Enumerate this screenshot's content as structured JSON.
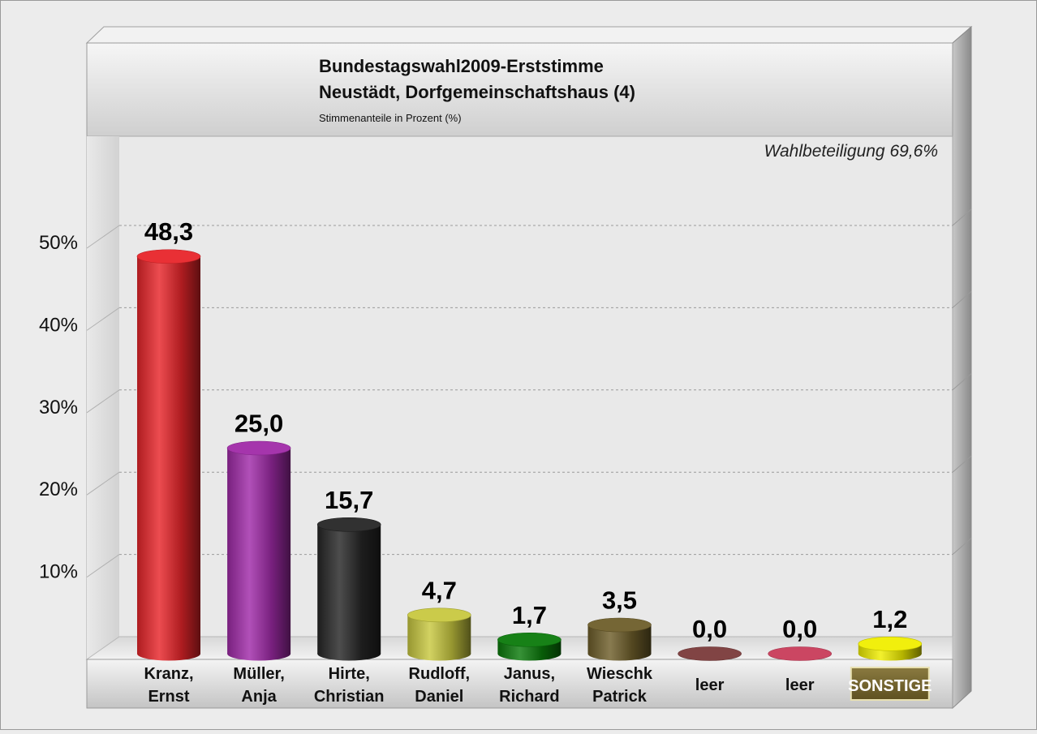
{
  "chart_data": {
    "type": "bar",
    "title": "Bundestagswahl2009-Erststimme",
    "subtitle": "Neustädt, Dorfgemeinschaftshaus (4)",
    "note": "Stimmenanteile in Prozent (%)",
    "turnout": "Wahlbeteiligung 69,6%",
    "ylim": [
      0,
      60
    ],
    "y_ticks": [
      10,
      20,
      30,
      40,
      50
    ],
    "y_tick_labels": [
      "10%",
      "20%",
      "30%",
      "40%",
      "50%"
    ],
    "grid": true,
    "categories": [
      {
        "line1": "Kranz,",
        "line2": "Ernst"
      },
      {
        "line1": "Müller,",
        "line2": "Anja"
      },
      {
        "line1": "Hirte,",
        "line2": "Christian"
      },
      {
        "line1": "Rudloff,",
        "line2": "Daniel"
      },
      {
        "line1": "Janus,",
        "line2": "Richard"
      },
      {
        "line1": "Wieschk",
        "line2": "Patrick"
      },
      {
        "line1": "leer",
        "line2": ""
      },
      {
        "line1": "leer",
        "line2": ""
      },
      {
        "badge": "SONSTIGE"
      }
    ],
    "values": [
      48.3,
      25.0,
      15.7,
      4.7,
      1.7,
      3.5,
      0.0,
      0.0,
      1.2
    ],
    "value_labels": [
      "48,3",
      "25,0",
      "15,7",
      "4,7",
      "1,7",
      "3,5",
      "0,0",
      "0,0",
      "1,2"
    ],
    "colors": [
      "#e8252a",
      "#a02aa8",
      "#262626",
      "#c8c840",
      "#0b7a0b",
      "#6e5e2a",
      "#7a3a3a",
      "#c83c5a",
      "#f0ee00"
    ]
  }
}
